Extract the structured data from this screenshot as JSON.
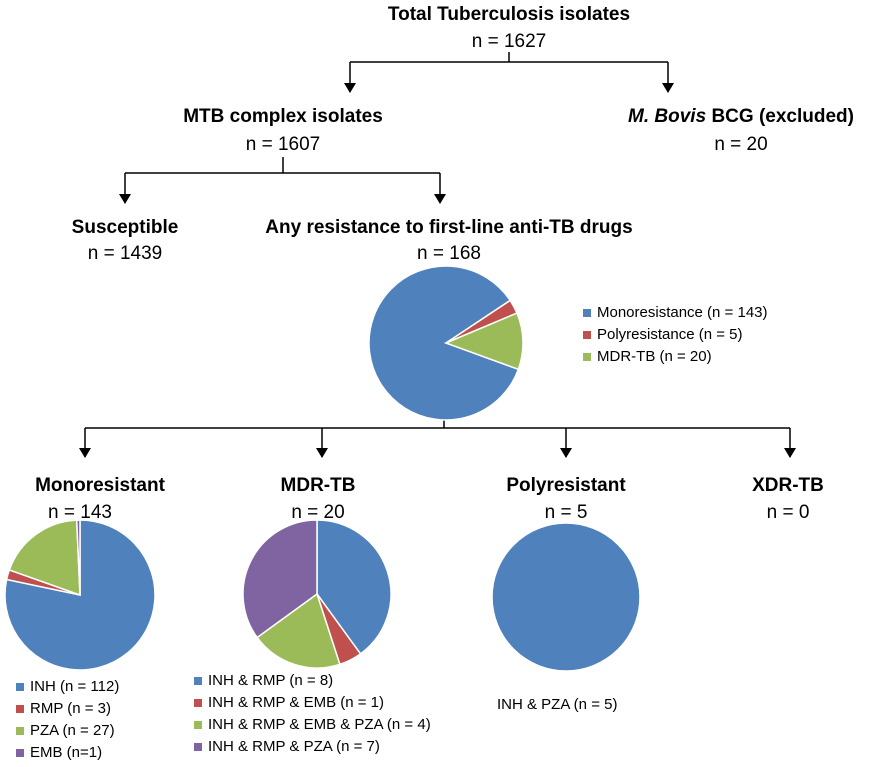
{
  "nodes": {
    "total": {
      "title": "Total Tuberculosis isolates",
      "count": "n = 1627"
    },
    "mtb": {
      "title": "MTB complex isolates",
      "count": "n = 1607"
    },
    "bovis": {
      "title_em": "M. Bovis",
      "title": "BCG (excluded)",
      "count": "n = 20"
    },
    "susceptible": {
      "title": "Susceptible",
      "count": "n = 1439"
    },
    "resistance": {
      "title": "Any resistance to first-line anti-TB drugs",
      "count": "n = 168"
    },
    "mono": {
      "title": "Monoresistant",
      "count": "n = 143"
    },
    "mdr": {
      "title": "MDR-TB",
      "count": "n = 20"
    },
    "poly": {
      "title": "Polyresistant",
      "count": "n = 5"
    },
    "xdr": {
      "title": "XDR-TB",
      "count": "n = 0"
    }
  },
  "pies": [
    {
      "slices": [
        {
          "label": "Monoresistance (n = 143)",
          "value": 143,
          "color": "#4f81bd"
        },
        {
          "label": "Polyresistance (n = 5)",
          "value": 5,
          "color": "#c0504d"
        },
        {
          "label": "MDR-TB (n = 20)",
          "value": 20,
          "color": "#9bbb59"
        }
      ]
    },
    {
      "slices": [
        {
          "label": "INH (n = 112)",
          "value": 112,
          "color": "#4f81bd"
        },
        {
          "label": "RMP (n = 3)",
          "value": 3,
          "color": "#c0504d"
        },
        {
          "label": "PZA (n = 27)",
          "value": 27,
          "color": "#9bbb59"
        },
        {
          "label": "EMB (n=1)",
          "value": 1,
          "color": "#8064a2"
        }
      ]
    },
    {
      "slices": [
        {
          "label": "INH & RMP (n = 8)",
          "value": 8,
          "color": "#4f81bd"
        },
        {
          "label": "INH & RMP & EMB (n = 1)",
          "value": 1,
          "color": "#c0504d"
        },
        {
          "label": "INH & RMP & EMB & PZA (n = 4)",
          "value": 4,
          "color": "#9bbb59"
        },
        {
          "label": "INH & RMP & PZA (n = 7)",
          "value": 7,
          "color": "#8064a2"
        }
      ]
    },
    {
      "slices": [
        {
          "label": "INH & PZA (n = 5)",
          "value": 5,
          "color": "#4f81bd"
        }
      ]
    }
  ]
}
